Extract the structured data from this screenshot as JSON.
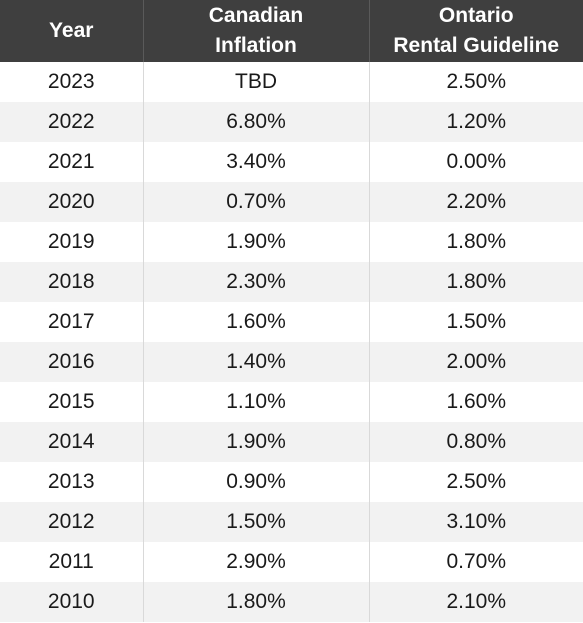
{
  "table": {
    "headers": {
      "year": "Year",
      "inflation": [
        "Canadian",
        "Inflation"
      ],
      "guideline": [
        "Ontario",
        "Rental Guideline"
      ]
    },
    "rows": [
      {
        "year": "2023",
        "inflation": "TBD",
        "guideline": "2.50%"
      },
      {
        "year": "2022",
        "inflation": "6.80%",
        "guideline": "1.20%"
      },
      {
        "year": "2021",
        "inflation": "3.40%",
        "guideline": "0.00%"
      },
      {
        "year": "2020",
        "inflation": "0.70%",
        "guideline": "2.20%"
      },
      {
        "year": "2019",
        "inflation": "1.90%",
        "guideline": "1.80%"
      },
      {
        "year": "2018",
        "inflation": "2.30%",
        "guideline": "1.80%"
      },
      {
        "year": "2017",
        "inflation": "1.60%",
        "guideline": "1.50%"
      },
      {
        "year": "2016",
        "inflation": "1.40%",
        "guideline": "2.00%"
      },
      {
        "year": "2015",
        "inflation": "1.10%",
        "guideline": "1.60%"
      },
      {
        "year": "2014",
        "inflation": "1.90%",
        "guideline": "0.80%"
      },
      {
        "year": "2013",
        "inflation": "0.90%",
        "guideline": "2.50%"
      },
      {
        "year": "2012",
        "inflation": "1.50%",
        "guideline": "3.10%"
      },
      {
        "year": "2011",
        "inflation": "2.90%",
        "guideline": "0.70%"
      },
      {
        "year": "2010",
        "inflation": "1.80%",
        "guideline": "2.10%"
      }
    ]
  },
  "colors": {
    "header_bg": "#3f3f3f",
    "header_text": "#ffffff",
    "row_alt_bg": "#f2f2f2",
    "row_bg": "#ffffff"
  }
}
